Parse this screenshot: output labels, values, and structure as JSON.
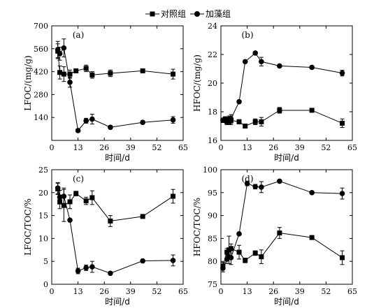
{
  "legend": {
    "control_label": "对照组",
    "algae_label": "加藻组"
  },
  "chart_data": [
    {
      "type": "line",
      "panel": "(a)",
      "ylabel": "LFOC/(mg/g)",
      "xlabel": "时间/d",
      "xlim": [
        0,
        65
      ],
      "ylim": [
        0,
        700
      ],
      "xticks": [
        0,
        13,
        26,
        39,
        52,
        65
      ],
      "yticks": [
        140,
        280,
        420,
        560,
        700
      ],
      "series": [
        {
          "name": "对照组",
          "marker": "square",
          "x": [
            3,
            4,
            6,
            9,
            12,
            17,
            20,
            29,
            45,
            60
          ],
          "y": [
            545,
            415,
            405,
            405,
            425,
            440,
            400,
            410,
            425,
            405
          ],
          "err": [
            45,
            40,
            45,
            25,
            10,
            20,
            20,
            20,
            10,
            30
          ]
        },
        {
          "name": "加藻组",
          "marker": "circle",
          "x": [
            3,
            4,
            6,
            9,
            13,
            17,
            20,
            29,
            45,
            60
          ],
          "y": [
            555,
            530,
            565,
            355,
            60,
            120,
            130,
            80,
            110,
            125
          ],
          "err": [
            50,
            40,
            55,
            30,
            10,
            15,
            30,
            10,
            10,
            20
          ]
        }
      ]
    },
    {
      "type": "line",
      "panel": "(b)",
      "ylabel": "HFOC/(mg/g)",
      "xlabel": "时间/d",
      "xlim": [
        0,
        65
      ],
      "ylim": [
        16,
        24
      ],
      "xticks": [
        0,
        13,
        26,
        39,
        52,
        65
      ],
      "yticks": [
        16,
        18,
        20,
        22,
        24
      ],
      "series": [
        {
          "name": "对照组",
          "marker": "square",
          "x": [
            1,
            2,
            3,
            4,
            5,
            9,
            12,
            17,
            20,
            29,
            45,
            60
          ],
          "y": [
            17.4,
            17.4,
            17.3,
            17.3,
            17.4,
            17.3,
            17.0,
            17.3,
            17.3,
            18.1,
            18.1,
            17.2
          ],
          "err": [
            0.15,
            0.15,
            0.2,
            0.2,
            0.3,
            0.15,
            0.1,
            0.2,
            0.3,
            0.2,
            0.05,
            0.3
          ]
        },
        {
          "name": "加藻组",
          "marker": "circle",
          "x": [
            1,
            2,
            3,
            4,
            5,
            9,
            12,
            17,
            20,
            29,
            45,
            60
          ],
          "y": [
            17.4,
            17.5,
            17.4,
            17.5,
            17.5,
            18.7,
            21.5,
            22.1,
            21.5,
            21.2,
            21.1,
            20.7
          ],
          "err": [
            0.15,
            0.15,
            0.2,
            0.2,
            0.3,
            0.1,
            0.1,
            0.1,
            0.3,
            0.1,
            0.1,
            0.2
          ]
        }
      ]
    },
    {
      "type": "line",
      "panel": "(c)",
      "ylabel": "LFOC/TOC/%",
      "xlabel": "时间/d",
      "xlim": [
        0,
        65
      ],
      "ylim": [
        0,
        25
      ],
      "xticks": [
        0,
        13,
        26,
        39,
        52,
        65
      ],
      "yticks": [
        0,
        5,
        10,
        15,
        20,
        25
      ],
      "series": [
        {
          "name": "对照组",
          "marker": "square",
          "x": [
            3,
            4,
            6,
            9,
            12,
            17,
            20,
            29,
            45,
            60
          ],
          "y": [
            20.8,
            18.0,
            17.2,
            18.0,
            19.8,
            18.2,
            18.9,
            13.8,
            14.8,
            19.2
          ],
          "err": [
            1.2,
            1.5,
            3.5,
            1.5,
            0.5,
            0.8,
            1.5,
            1.2,
            0.2,
            1.5
          ]
        },
        {
          "name": "加藻组",
          "marker": "circle",
          "x": [
            3,
            4,
            6,
            9,
            13,
            17,
            20,
            29,
            45,
            60
          ],
          "y": [
            21.0,
            19.0,
            19.2,
            14.0,
            2.9,
            3.6,
            3.8,
            2.4,
            5.1,
            5.2
          ],
          "err": [
            1.2,
            1.5,
            1.8,
            0.2,
            0.6,
            0.6,
            1.2,
            0.3,
            0.3,
            1.2
          ]
        }
      ]
    },
    {
      "type": "line",
      "panel": "(d)",
      "ylabel": "HFOC/TOC/%",
      "xlabel": "时间/d",
      "xlim": [
        0,
        65
      ],
      "ylim": [
        75,
        100
      ],
      "xticks": [
        0,
        13,
        26,
        39,
        52,
        65
      ],
      "yticks": [
        75,
        80,
        85,
        90,
        95,
        100
      ],
      "series": [
        {
          "name": "对照组",
          "marker": "square",
          "x": [
            1,
            3,
            4,
            5,
            9,
            12,
            17,
            20,
            29,
            45,
            60
          ],
          "y": [
            79.0,
            82.0,
            82.5,
            82.8,
            82.0,
            80.2,
            81.8,
            81.0,
            86.2,
            85.2,
            80.8
          ],
          "err": [
            0.8,
            0.8,
            3.0,
            1.0,
            1.5,
            0.5,
            0.5,
            1.5,
            1.2,
            0.2,
            1.5
          ]
        },
        {
          "name": "加藻组",
          "marker": "circle",
          "x": [
            1,
            3,
            4,
            5,
            9,
            13,
            17,
            20,
            29,
            45,
            60
          ],
          "y": [
            78.5,
            80.5,
            81.0,
            80.8,
            86.0,
            97.0,
            96.3,
            96.2,
            97.5,
            95.0,
            94.8
          ],
          "err": [
            0.8,
            1.0,
            1.5,
            1.5,
            0.2,
            0.5,
            0.5,
            1.2,
            0.3,
            0.2,
            1.2
          ]
        }
      ]
    }
  ]
}
